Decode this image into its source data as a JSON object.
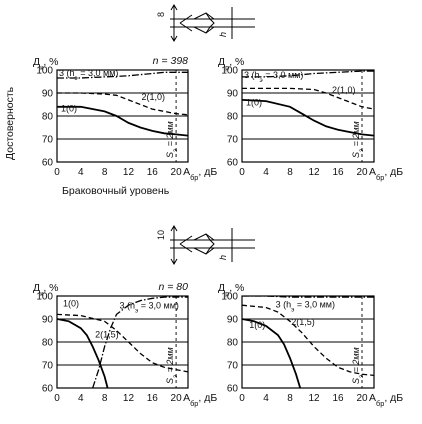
{
  "figure": {
    "ylabel_common": "Достоверность",
    "xlabel_common": "Браковочный уровень",
    "joint_top": {
      "thickness": "8",
      "h": "h"
    },
    "joint_bottom": {
      "thickness": "10",
      "h": "h"
    }
  },
  "chart_data": [
    {
      "type": "line",
      "id": "top-left",
      "ylabel": "Д",
      "ylabel_sub": "к",
      "ylabel_unit": ", %",
      "xlabel": "А",
      "xlabel_sub": "бр",
      "xlabel_unit": ", дБ",
      "n_label": "n = 398",
      "xlim": [
        0,
        22
      ],
      "ylim": [
        60,
        100
      ],
      "xticks": [
        0,
        4,
        8,
        12,
        16,
        20
      ],
      "yticks": [
        60,
        70,
        80,
        90,
        100
      ],
      "vline": {
        "x": 20,
        "label": "S",
        "label_sub": "э",
        "label_val": " = 2мм"
      },
      "series": [
        {
          "name": "1(0)",
          "style": "solid",
          "x": [
            0,
            4,
            8,
            10,
            12,
            14,
            16,
            18,
            20,
            22
          ],
          "y": [
            84,
            84,
            82,
            80,
            77,
            75,
            73.5,
            72.5,
            72,
            71.5
          ]
        },
        {
          "name": "2(1,0)",
          "style": "dashed",
          "x": [
            0,
            4,
            8,
            10,
            12,
            14,
            16,
            18,
            20,
            22
          ],
          "y": [
            90,
            90,
            89.5,
            89,
            87,
            85,
            83,
            82,
            81,
            80.5
          ]
        },
        {
          "name": "3 (h = 3,0 мм)",
          "name_sub": "э",
          "style": "dashdot",
          "x": [
            0,
            4,
            8,
            12,
            14,
            16,
            18,
            20,
            22
          ],
          "y": [
            96.5,
            96.5,
            97,
            97.5,
            98,
            98.5,
            99,
            99,
            99
          ]
        }
      ]
    },
    {
      "type": "line",
      "id": "top-right",
      "ylabel": "Д",
      "ylabel_sub": "р",
      "ylabel_unit": ", %",
      "xlabel": "А",
      "xlabel_sub": "бр",
      "xlabel_unit": ", дБ",
      "xlim": [
        0,
        22
      ],
      "ylim": [
        60,
        100
      ],
      "xticks": [
        0,
        4,
        8,
        12,
        16,
        20
      ],
      "yticks": [
        60,
        70,
        80,
        90,
        100
      ],
      "vline": {
        "x": 20,
        "label": "S",
        "label_sub": "э",
        "label_val": " = 2мм"
      },
      "series": [
        {
          "name": "1(0)",
          "style": "solid",
          "x": [
            0,
            4,
            8,
            10,
            12,
            14,
            16,
            18,
            20,
            22
          ],
          "y": [
            87,
            86.5,
            84,
            81,
            78,
            75.5,
            74,
            73,
            72,
            71.5
          ]
        },
        {
          "name": "2(1,0)",
          "style": "dashed",
          "x": [
            0,
            4,
            8,
            12,
            14,
            16,
            18,
            20,
            22
          ],
          "y": [
            92,
            92,
            92,
            91.5,
            90,
            88,
            86,
            84,
            83
          ]
        },
        {
          "name": "3 (h = 3,0 мм)",
          "name_sub": "э",
          "style": "dashdot",
          "x": [
            0,
            4,
            8,
            12,
            16,
            20,
            22
          ],
          "y": [
            97,
            97,
            97.5,
            98.5,
            99,
            99.5,
            99.5
          ]
        }
      ]
    },
    {
      "type": "line",
      "id": "bottom-left",
      "ylabel": "Д",
      "ylabel_sub": "к",
      "ylabel_unit": ", %",
      "xlabel": "А",
      "xlabel_sub": "бр",
      "xlabel_unit": ", дБ",
      "n_label": "n = 80",
      "xlim": [
        0,
        22
      ],
      "ylim": [
        60,
        100
      ],
      "xticks": [
        0,
        4,
        8,
        12,
        16,
        20
      ],
      "yticks": [
        60,
        70,
        80,
        90,
        100
      ],
      "vline": {
        "x": 20,
        "label": "S",
        "label_sub": "э",
        "label_val": " = 2мм"
      },
      "series": [
        {
          "name": "1(0)",
          "style": "solid",
          "x": [
            0,
            2,
            4,
            5,
            6,
            7,
            8,
            8.5
          ],
          "y": [
            90,
            89,
            86,
            83,
            78,
            72,
            65,
            60
          ]
        },
        {
          "name": "2(1,5)",
          "style": "dashed",
          "x": [
            0,
            4,
            8,
            10,
            12,
            14,
            16,
            18,
            20,
            22
          ],
          "y": [
            92,
            91.5,
            89,
            85,
            80,
            75,
            71,
            69,
            68,
            67
          ]
        },
        {
          "name": "3 (h = 3,0 мм)",
          "name_sub": "э",
          "style": "dashdot",
          "x": [
            6,
            7,
            8,
            9,
            10,
            12,
            14,
            16,
            18,
            20,
            22
          ],
          "y": [
            60,
            68,
            78,
            86,
            92,
            96,
            98,
            99,
            99.5,
            99.5,
            99.5
          ]
        }
      ]
    },
    {
      "type": "line",
      "id": "bottom-right",
      "ylabel": "Д",
      "ylabel_sub": "р",
      "ylabel_unit": ", %",
      "xlabel": "А",
      "xlabel_sub": "бр",
      "xlabel_unit": ", дБ",
      "xlim": [
        0,
        22
      ],
      "ylim": [
        60,
        100
      ],
      "xticks": [
        0,
        4,
        8,
        12,
        16,
        20
      ],
      "yticks": [
        60,
        70,
        80,
        90,
        100
      ],
      "vline": {
        "x": 20,
        "label": "S",
        "label_sub": "э",
        "label_val": " = 2мм"
      },
      "series": [
        {
          "name": "1(0)",
          "style": "solid",
          "x": [
            0,
            2,
            4,
            6,
            7,
            8,
            9,
            9.7
          ],
          "y": [
            90,
            89,
            87,
            83,
            79,
            73,
            66,
            60
          ]
        },
        {
          "name": "2(1,5)",
          "style": "dashed",
          "x": [
            0,
            4,
            6,
            8,
            10,
            12,
            14,
            16,
            18,
            20,
            22
          ],
          "y": [
            96,
            95,
            93,
            89,
            84,
            78,
            73,
            69,
            67,
            66,
            65.5
          ]
        },
        {
          "name": "3 (h = 3,0 мм)",
          "name_sub": "э",
          "style": "dashdot",
          "x": [
            0,
            4,
            8,
            12,
            16,
            20,
            22
          ],
          "y": [
            100,
            100,
            99.5,
            99.5,
            99.5,
            99.5,
            99.5
          ]
        }
      ]
    }
  ]
}
